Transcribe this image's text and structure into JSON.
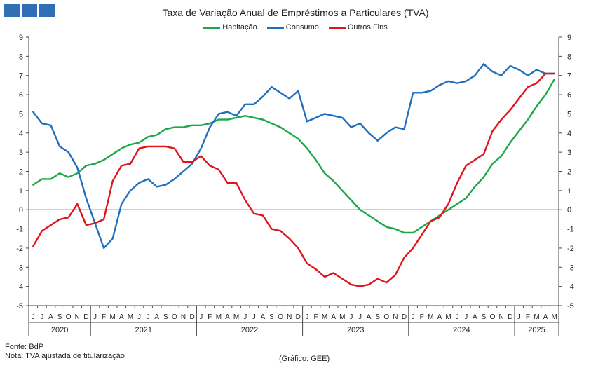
{
  "header": {
    "logo_icon": "three-blue-squares-logo"
  },
  "footer": {
    "source": "Fonte: BdP",
    "note": "Nota: TVA ajustada de titularização",
    "credit": "(Gráfico: GEE)"
  },
  "chart_data": {
    "type": "line",
    "title": "Taxa de Variação Anual de Empréstimos a Particulares (TVA)",
    "xlabel": "",
    "ylabel": "",
    "ylim": [
      -5,
      9
    ],
    "yticks": [
      -5,
      -4,
      -3,
      -2,
      -1,
      0,
      1,
      2,
      3,
      4,
      5,
      6,
      7,
      8,
      9
    ],
    "grid": false,
    "legend_position": "top-center",
    "month_labels": [
      "J",
      "J",
      "A",
      "S",
      "O",
      "N",
      "D",
      "J",
      "F",
      "M",
      "A",
      "M",
      "J",
      "J",
      "A",
      "S",
      "O",
      "N",
      "D",
      "J",
      "F",
      "M",
      "A",
      "M",
      "J",
      "J",
      "A",
      "S",
      "O",
      "N",
      "D",
      "J",
      "F",
      "M",
      "A",
      "M",
      "J",
      "J",
      "A",
      "S",
      "O",
      "N",
      "D",
      "J",
      "F",
      "M",
      "A",
      "M",
      "J",
      "J",
      "A",
      "S",
      "O",
      "N",
      "D",
      "J",
      "F",
      "M",
      "A",
      "M"
    ],
    "years": [
      {
        "label": "2020",
        "start": 0,
        "end": 7
      },
      {
        "label": "2021",
        "start": 7,
        "end": 19
      },
      {
        "label": "2022",
        "start": 19,
        "end": 31
      },
      {
        "label": "2023",
        "start": 31,
        "end": 43
      },
      {
        "label": "2024",
        "start": 43,
        "end": 55
      },
      {
        "label": "2025",
        "start": 55,
        "end": 60
      }
    ],
    "series": [
      {
        "name": "Habitação",
        "color": "#1ea64a",
        "values": [
          1.3,
          1.6,
          1.6,
          1.9,
          1.7,
          1.9,
          2.3,
          2.4,
          2.6,
          2.9,
          3.2,
          3.4,
          3.5,
          3.8,
          3.9,
          4.2,
          4.3,
          4.3,
          4.4,
          4.4,
          4.5,
          4.7,
          4.7,
          4.8,
          4.9,
          4.8,
          4.7,
          4.5,
          4.3,
          4.0,
          3.7,
          3.2,
          2.6,
          1.9,
          1.5,
          1.0,
          0.5,
          0.0,
          -0.3,
          -0.6,
          -0.9,
          -1.0,
          -1.2,
          -1.2,
          -0.9,
          -0.6,
          -0.3,
          0.0,
          0.3,
          0.6,
          1.2,
          1.7,
          2.4,
          2.8,
          3.5,
          4.1,
          4.7,
          5.4,
          6.0,
          6.8
        ]
      },
      {
        "name": "Consumo",
        "color": "#1f6fbf",
        "values": [
          5.1,
          4.5,
          4.4,
          3.3,
          3.0,
          2.2,
          0.6,
          -0.7,
          -2.0,
          -1.5,
          0.3,
          1.0,
          1.4,
          1.6,
          1.2,
          1.3,
          1.6,
          2.0,
          2.4,
          3.2,
          4.3,
          5.0,
          5.1,
          4.9,
          5.5,
          5.5,
          5.9,
          6.4,
          6.1,
          5.8,
          6.2,
          4.6,
          4.8,
          5.0,
          4.9,
          4.8,
          4.3,
          4.5,
          4.0,
          3.6,
          4.0,
          4.3,
          4.2,
          6.1,
          6.1,
          6.2,
          6.5,
          6.7,
          6.6,
          6.7,
          7.0,
          7.6,
          7.2,
          7.0,
          7.5,
          7.3,
          7.0,
          7.3,
          7.1,
          7.1
        ]
      },
      {
        "name": "Outros Fins",
        "color": "#e0151b",
        "values": [
          -1.9,
          -1.1,
          -0.8,
          -0.5,
          -0.4,
          0.3,
          -0.8,
          -0.7,
          -0.5,
          1.5,
          2.3,
          2.4,
          3.2,
          3.3,
          3.3,
          3.3,
          3.2,
          2.5,
          2.5,
          2.8,
          2.3,
          2.1,
          1.4,
          1.4,
          0.5,
          -0.2,
          -0.3,
          -1.0,
          -1.1,
          -1.5,
          -2.0,
          -2.8,
          -3.1,
          -3.5,
          -3.3,
          -3.6,
          -3.9,
          -4.0,
          -3.9,
          -3.6,
          -3.8,
          -3.4,
          -2.5,
          -2.0,
          -1.3,
          -0.6,
          -0.4,
          0.3,
          1.4,
          2.3,
          2.6,
          2.9,
          4.1,
          4.7,
          5.2,
          5.8,
          6.4,
          6.6,
          7.1,
          7.1
        ]
      }
    ]
  }
}
